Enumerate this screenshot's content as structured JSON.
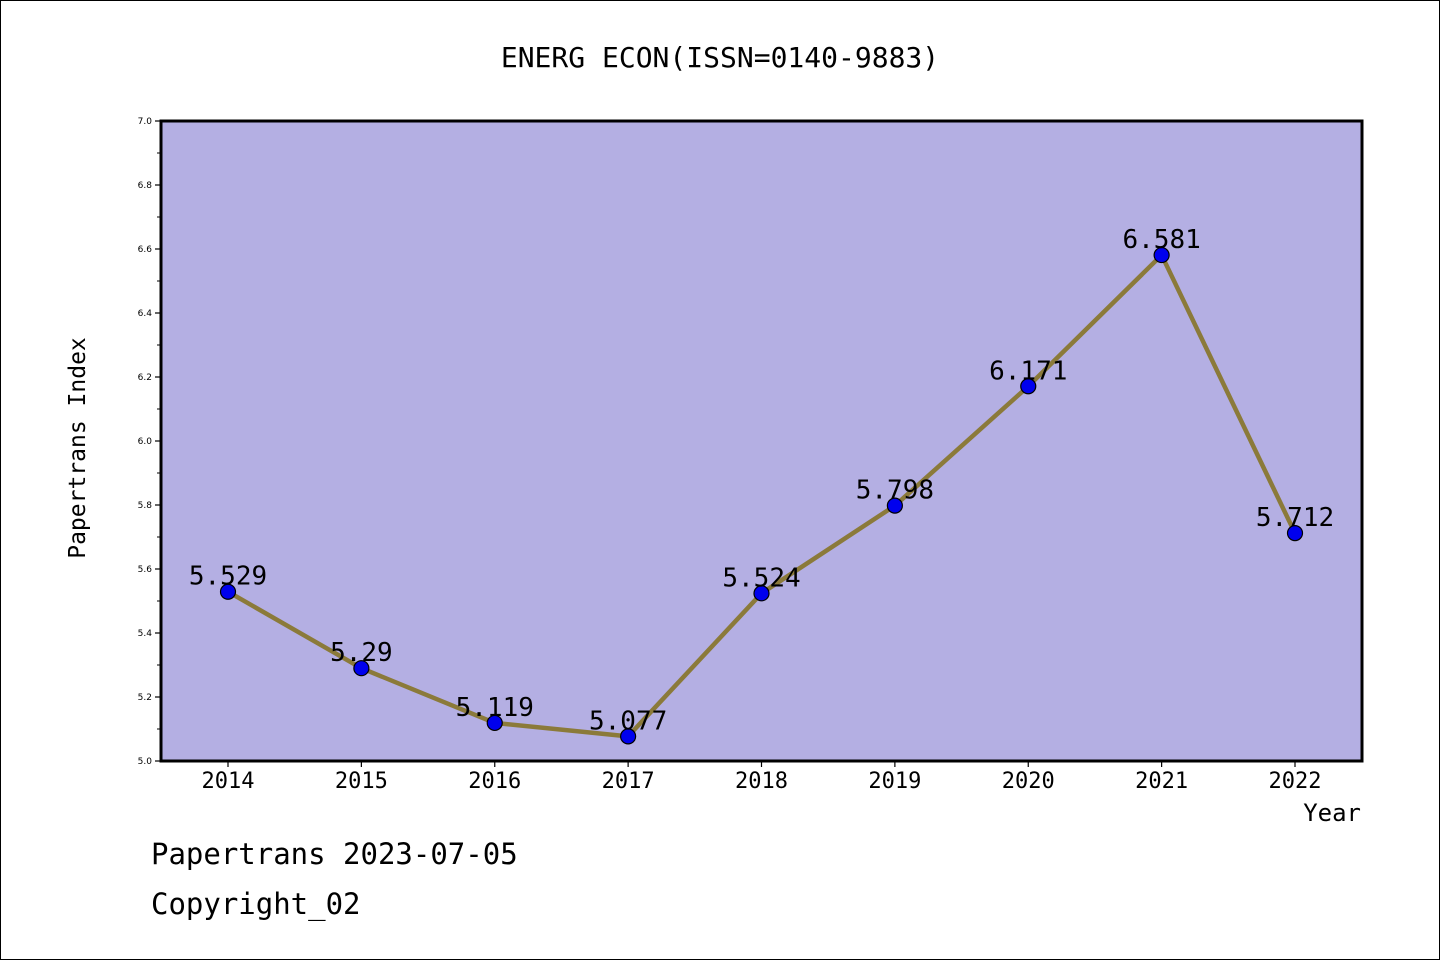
{
  "chart_data": {
    "type": "line",
    "title": "ENERG ECON(ISSN=0140-9883)",
    "xlabel": "Year",
    "ylabel": "Papertrans Index",
    "categories": [
      "2014",
      "2015",
      "2016",
      "2017",
      "2018",
      "2019",
      "2020",
      "2021",
      "2022"
    ],
    "series": [
      {
        "values": [
          5.529,
          5.29,
          5.119,
          5.077,
          5.524,
          5.798,
          6.171,
          6.581,
          5.712
        ],
        "labels": [
          "5.529",
          "5.29",
          "5.119",
          "5.077",
          "5.524",
          "5.798",
          "6.171",
          "6.581",
          "5.712"
        ]
      }
    ],
    "ylim": [
      5.0,
      7.0
    ],
    "yticks": [
      "5.0",
      "5.2",
      "5.4",
      "5.6",
      "5.8",
      "6.0",
      "6.2",
      "6.4",
      "6.6",
      "6.8",
      "7.0"
    ],
    "grid": false,
    "colors": {
      "plot_background": "#b4afe3",
      "line": "#8b7a3a",
      "marker": "#0000ee",
      "axis": "#000000"
    }
  },
  "footer": {
    "line1": "Papertrans 2023-07-05",
    "line2": "Copyright_02"
  }
}
